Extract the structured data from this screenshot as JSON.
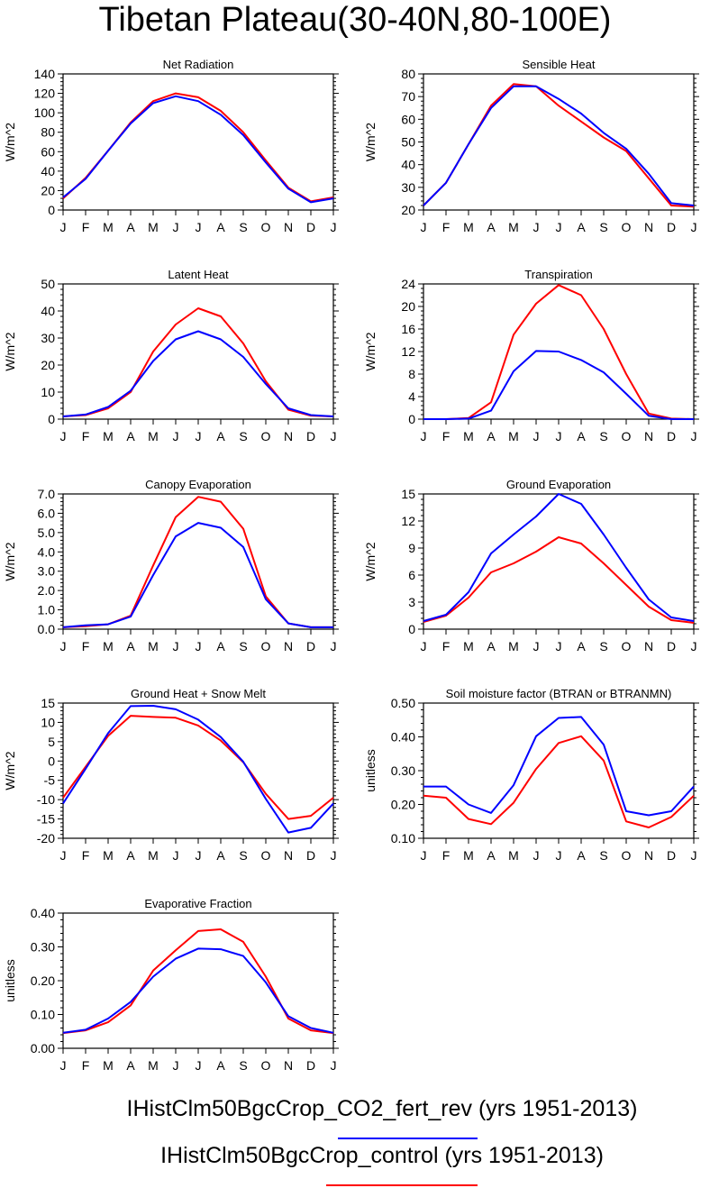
{
  "title": "Tibetan Plateau(30-40N,80-100E)",
  "colors": {
    "series_1": "#0000ff",
    "series_2": "#ff0000"
  },
  "legend": [
    {
      "label": "IHistClm50BgcCrop_CO2_fert_rev (yrs 1951-2013)",
      "color": "#0000ff"
    },
    {
      "label": "IHistClm50BgcCrop_control (yrs 1951-2013)",
      "color": "#ff0000"
    }
  ],
  "chart_data": [
    {
      "type": "line",
      "title": "Net Radiation",
      "ylabel": "W/m^2",
      "xlabel": "",
      "categories": [
        "J",
        "F",
        "M",
        "A",
        "M",
        "J",
        "J",
        "A",
        "S",
        "O",
        "N",
        "D",
        "J"
      ],
      "ylim": [
        0,
        140
      ],
      "yticks": [
        0,
        20,
        40,
        60,
        80,
        100,
        120,
        140
      ],
      "ytick_labels": [
        "0",
        "20",
        "40",
        "60",
        "80",
        "100",
        "120",
        "140"
      ],
      "series": [
        {
          "color": "#ff0000",
          "values": [
            12,
            33,
            61,
            90,
            112,
            120,
            116,
            102,
            80,
            51,
            23,
            9,
            13
          ]
        },
        {
          "color": "#0000ff",
          "values": [
            13,
            32,
            61,
            89,
            110,
            117,
            112,
            98,
            77,
            49,
            22,
            8,
            12
          ]
        }
      ]
    },
    {
      "type": "line",
      "title": "Sensible Heat",
      "ylabel": "W/m^2",
      "xlabel": "",
      "categories": [
        "J",
        "F",
        "M",
        "A",
        "M",
        "J",
        "J",
        "A",
        "S",
        "O",
        "N",
        "D",
        "J"
      ],
      "ylim": [
        20,
        80
      ],
      "yticks": [
        20,
        30,
        40,
        50,
        60,
        70,
        80
      ],
      "ytick_labels": [
        "20",
        "30",
        "40",
        "50",
        "60",
        "70",
        "80"
      ],
      "series": [
        {
          "color": "#ff0000",
          "values": [
            22,
            32,
            49,
            66,
            75.5,
            74.5,
            66,
            59,
            52,
            46,
            34,
            22,
            21.5
          ]
        },
        {
          "color": "#0000ff",
          "values": [
            22,
            32,
            49,
            65,
            74.5,
            74.5,
            69,
            62.5,
            54,
            47,
            36,
            23,
            22
          ]
        }
      ]
    },
    {
      "type": "line",
      "title": "Latent Heat",
      "ylabel": "W/m^2",
      "xlabel": "",
      "categories": [
        "J",
        "F",
        "M",
        "A",
        "M",
        "J",
        "J",
        "A",
        "S",
        "O",
        "N",
        "D",
        "J"
      ],
      "ylim": [
        0,
        50
      ],
      "yticks": [
        0,
        10,
        20,
        30,
        40,
        50
      ],
      "ytick_labels": [
        "0",
        "10",
        "20",
        "30",
        "40",
        "50"
      ],
      "series": [
        {
          "color": "#ff0000",
          "values": [
            1,
            1.5,
            4,
            10,
            25,
            35,
            41,
            38,
            28,
            14,
            3.5,
            1.3,
            1
          ]
        },
        {
          "color": "#0000ff",
          "values": [
            1,
            1.7,
            4.5,
            10.5,
            21.5,
            29.5,
            32.5,
            29.5,
            23,
            13,
            4,
            1.5,
            1
          ]
        }
      ]
    },
    {
      "type": "line",
      "title": "Transpiration",
      "ylabel": "W/m^2",
      "xlabel": "",
      "categories": [
        "J",
        "F",
        "M",
        "A",
        "M",
        "J",
        "J",
        "A",
        "S",
        "O",
        "N",
        "D",
        "J"
      ],
      "ylim": [
        0,
        24
      ],
      "yticks": [
        0,
        4,
        8,
        12,
        16,
        20,
        24
      ],
      "ytick_labels": [
        "0",
        "4",
        "8",
        "12",
        "16",
        "20",
        "24"
      ],
      "series": [
        {
          "color": "#ff0000",
          "values": [
            0,
            0,
            0.2,
            3,
            15,
            20.5,
            23.8,
            22,
            16,
            8,
            1,
            0.1,
            0
          ]
        },
        {
          "color": "#0000ff",
          "values": [
            0,
            0,
            0.1,
            1.5,
            8.5,
            12.1,
            12,
            10.5,
            8.3,
            4.5,
            0.6,
            0,
            0
          ]
        }
      ]
    },
    {
      "type": "line",
      "title": "Canopy Evaporation",
      "ylabel": "W/m^2",
      "xlabel": "",
      "categories": [
        "J",
        "F",
        "M",
        "A",
        "M",
        "J",
        "J",
        "A",
        "S",
        "O",
        "N",
        "D",
        "J"
      ],
      "ylim": [
        0,
        7
      ],
      "yticks": [
        0,
        1,
        2,
        3,
        4,
        5,
        6,
        7
      ],
      "ytick_labels": [
        "0.0",
        "1.0",
        "2.0",
        "3.0",
        "4.0",
        "5.0",
        "6.0",
        "7.0"
      ],
      "series": [
        {
          "color": "#ff0000",
          "values": [
            0.1,
            0.15,
            0.25,
            0.7,
            3.3,
            5.8,
            6.85,
            6.6,
            5.2,
            1.7,
            0.3,
            0.1,
            0.1
          ]
        },
        {
          "color": "#0000ff",
          "values": [
            0.1,
            0.2,
            0.25,
            0.65,
            2.8,
            4.8,
            5.5,
            5.25,
            4.25,
            1.55,
            0.3,
            0.1,
            0.1
          ]
        }
      ]
    },
    {
      "type": "line",
      "title": "Ground Evaporation",
      "ylabel": "W/m^2",
      "xlabel": "",
      "categories": [
        "J",
        "F",
        "M",
        "A",
        "M",
        "J",
        "J",
        "A",
        "S",
        "O",
        "N",
        "D",
        "J"
      ],
      "ylim": [
        0,
        15
      ],
      "yticks": [
        0,
        3,
        6,
        9,
        12,
        15
      ],
      "ytick_labels": [
        "0",
        "3",
        "6",
        "9",
        "12",
        "15"
      ],
      "series": [
        {
          "color": "#ff0000",
          "values": [
            0.8,
            1.5,
            3.5,
            6.3,
            7.3,
            8.6,
            10.2,
            9.5,
            7.3,
            4.9,
            2.5,
            1.0,
            0.7
          ]
        },
        {
          "color": "#0000ff",
          "values": [
            0.9,
            1.6,
            4.1,
            8.4,
            10.5,
            12.5,
            15,
            13.9,
            10.5,
            6.8,
            3.3,
            1.3,
            0.9
          ]
        }
      ]
    },
    {
      "type": "line",
      "title": "Ground Heat + Snow Melt",
      "ylabel": "W/m^2",
      "xlabel": "",
      "categories": [
        "J",
        "F",
        "M",
        "A",
        "M",
        "J",
        "J",
        "A",
        "S",
        "O",
        "N",
        "D",
        "J"
      ],
      "ylim": [
        -20,
        15
      ],
      "yticks": [
        -20,
        -15,
        -10,
        -5,
        0,
        5,
        10,
        15
      ],
      "ytick_labels": [
        "-20",
        "-15",
        "-10",
        "-5",
        "0",
        "5",
        "10",
        "15"
      ],
      "series": [
        {
          "color": "#ff0000",
          "values": [
            -9.5,
            -1.5,
            6.5,
            11.7,
            11.4,
            11.2,
            9.2,
            5.3,
            -0.3,
            -8.5,
            -15,
            -14.2,
            -9.5
          ]
        },
        {
          "color": "#0000ff",
          "values": [
            -11,
            -2,
            7.2,
            14.2,
            14.3,
            13.4,
            10.7,
            6.2,
            -0.2,
            -9.8,
            -18.5,
            -17.3,
            -11
          ]
        }
      ]
    },
    {
      "type": "line",
      "title": "Soil moisture factor (BTRAN or BTRANMN)",
      "ylabel": "unitless",
      "xlabel": "",
      "categories": [
        "J",
        "F",
        "M",
        "A",
        "M",
        "J",
        "J",
        "A",
        "S",
        "O",
        "N",
        "D",
        "J"
      ],
      "ylim": [
        0.1,
        0.5
      ],
      "yticks": [
        0.1,
        0.2,
        0.3,
        0.4,
        0.5
      ],
      "ytick_labels": [
        "0.10",
        "0.20",
        "0.30",
        "0.40",
        "0.50"
      ],
      "series": [
        {
          "color": "#ff0000",
          "values": [
            0.226,
            0.22,
            0.157,
            0.142,
            0.205,
            0.305,
            0.382,
            0.402,
            0.33,
            0.15,
            0.132,
            0.163,
            0.226
          ]
        },
        {
          "color": "#0000ff",
          "values": [
            0.253,
            0.253,
            0.2,
            0.175,
            0.257,
            0.402,
            0.456,
            0.459,
            0.377,
            0.18,
            0.168,
            0.18,
            0.253
          ]
        }
      ]
    },
    {
      "type": "line",
      "title": "Evaporative Fraction",
      "ylabel": "unitless",
      "xlabel": "",
      "categories": [
        "J",
        "F",
        "M",
        "A",
        "M",
        "J",
        "J",
        "A",
        "S",
        "O",
        "N",
        "D",
        "J"
      ],
      "ylim": [
        0,
        0.4
      ],
      "yticks": [
        0,
        0.1,
        0.2,
        0.3,
        0.4
      ],
      "ytick_labels": [
        "0.00",
        "0.10",
        "0.20",
        "0.30",
        "0.40"
      ],
      "series": [
        {
          "color": "#ff0000",
          "values": [
            0.045,
            0.053,
            0.077,
            0.127,
            0.23,
            0.29,
            0.347,
            0.352,
            0.315,
            0.212,
            0.088,
            0.053,
            0.045
          ]
        },
        {
          "color": "#0000ff",
          "values": [
            0.046,
            0.055,
            0.088,
            0.137,
            0.212,
            0.265,
            0.295,
            0.293,
            0.273,
            0.195,
            0.095,
            0.06,
            0.046
          ]
        }
      ]
    }
  ]
}
